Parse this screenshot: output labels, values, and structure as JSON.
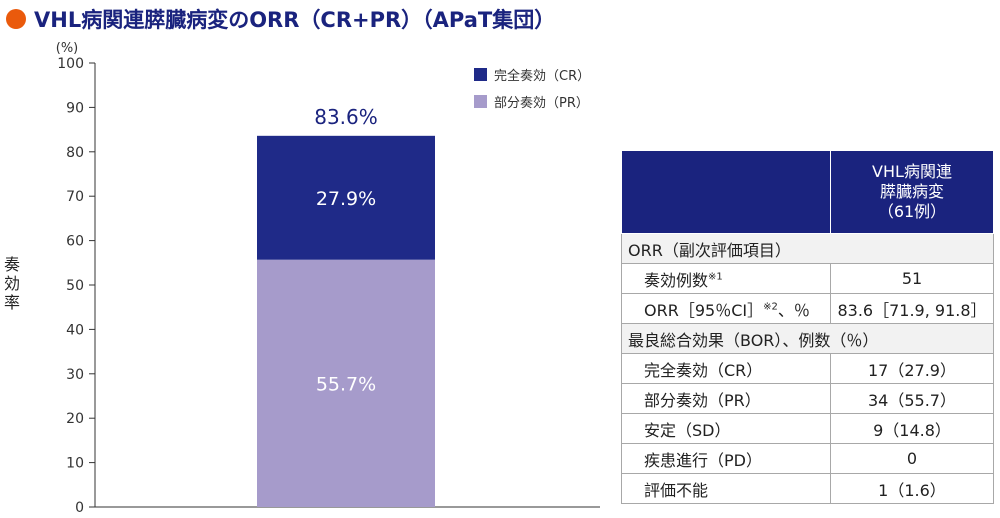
{
  "title": "VHL病関連膵臓病変のORR（CR+PR）（APaT集団）",
  "colors": {
    "cr": "#1f2a88",
    "pr": "#a69bcb",
    "title": "#1a237e",
    "dot": "#ea5a0c"
  },
  "chart_data": {
    "type": "bar",
    "stacked": true,
    "categories": [
      ""
    ],
    "series": [
      {
        "name": "完全奏効（CR）",
        "values": [
          27.9
        ],
        "labels": [
          "27.9%"
        ]
      },
      {
        "name": "部分奏効（PR）",
        "values": [
          55.7
        ],
        "labels": [
          "55.7%"
        ]
      }
    ],
    "total_label": "83.6%",
    "total": 83.6,
    "ylabel": "奏効率",
    "y_unit": "(%)",
    "ylim": [
      0,
      100
    ],
    "yticks": [
      "0",
      "10",
      "20",
      "30",
      "40",
      "50",
      "60",
      "70",
      "80",
      "90",
      "100"
    ],
    "legend_position": "top-right",
    "grid": false
  },
  "table": {
    "header": [
      "",
      "VHL病関連\n膵臓病変\n（61例）"
    ],
    "rows": [
      {
        "label": "ORR（副次評価項目）",
        "value": ""
      },
      {
        "label": "奏効例数",
        "sup": "※1",
        "value": "51"
      },
      {
        "label": "ORR［95％CI］",
        "sup": "※2",
        "suffix": "、％",
        "value": "83.6［71.9, 91.8］"
      },
      {
        "label": "最良総合効果（BOR）、例数（％）",
        "value": ""
      },
      {
        "label": "完全奏効（CR）",
        "value": "17（27.9）"
      },
      {
        "label": "部分奏効（PR）",
        "value": "34（55.7）"
      },
      {
        "label": "安定（SD）",
        "value": "9（14.8）"
      },
      {
        "label": "疾患進行（PD）",
        "value": "0"
      },
      {
        "label": "評価不能",
        "value": "1（1.6）"
      }
    ]
  }
}
